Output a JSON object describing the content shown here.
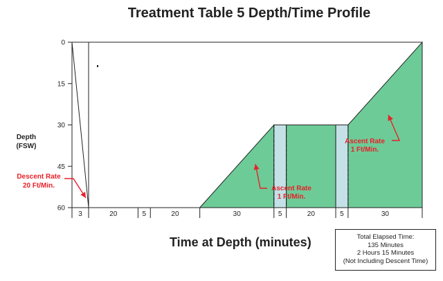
{
  "chart_data": {
    "type": "area",
    "title": "Treatment Table 5 Depth/Time Profile",
    "xlabel": "Time at Depth (minutes)",
    "ylabel_lines": [
      "Depth",
      "(FSW)"
    ],
    "ylim": [
      0,
      60
    ],
    "y_inverted": true,
    "y_ticks": [
      0,
      15,
      30,
      45,
      60
    ],
    "grid": false,
    "segments": [
      {
        "label": "3",
        "minutes": 3,
        "phase": "descent",
        "start_depth": 0,
        "end_depth": 60,
        "gas": "none"
      },
      {
        "label": "20",
        "minutes": 20,
        "phase": "hold",
        "start_depth": 60,
        "end_depth": 60,
        "gas": "oxygen"
      },
      {
        "label": "5",
        "minutes": 5,
        "phase": "hold",
        "start_depth": 60,
        "end_depth": 60,
        "gas": "air"
      },
      {
        "label": "20",
        "minutes": 20,
        "phase": "hold",
        "start_depth": 60,
        "end_depth": 60,
        "gas": "oxygen"
      },
      {
        "label": "30",
        "minutes": 30,
        "phase": "ascent",
        "start_depth": 60,
        "end_depth": 30,
        "gas": "oxygen"
      },
      {
        "label": "5",
        "minutes": 5,
        "phase": "hold",
        "start_depth": 30,
        "end_depth": 30,
        "gas": "air"
      },
      {
        "label": "20",
        "minutes": 20,
        "phase": "hold",
        "start_depth": 30,
        "end_depth": 30,
        "gas": "oxygen"
      },
      {
        "label": "5",
        "minutes": 5,
        "phase": "hold",
        "start_depth": 30,
        "end_depth": 30,
        "gas": "air"
      },
      {
        "label": "30",
        "minutes": 30,
        "phase": "ascent",
        "start_depth": 30,
        "end_depth": 0,
        "gas": "oxygen"
      }
    ],
    "annotations": [
      {
        "lines": [
          "Descent Rate",
          "20 Ft/Min."
        ]
      },
      {
        "lines": [
          "Ascent Rate",
          "1 Ft/Min."
        ]
      },
      {
        "lines": [
          "Ascent Rate",
          "1 Ft/Min."
        ]
      }
    ],
    "summary_box": [
      "Total Elapsed Time:",
      "135 Minutes",
      "2 Hours 15 Minutes",
      "(Not Including Descent Time)"
    ],
    "colors": {
      "oxygen": "#6dcb97",
      "air": "#c3e1e6",
      "accent": "#e8202a",
      "axis": "#222222"
    }
  }
}
